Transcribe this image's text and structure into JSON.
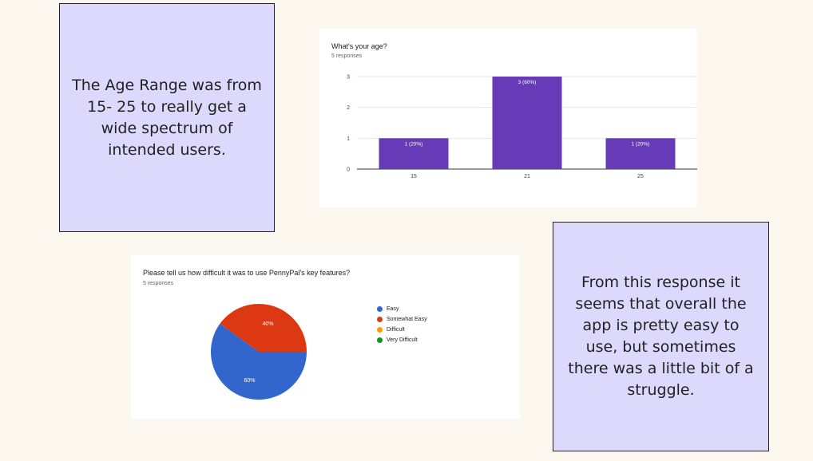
{
  "notes": {
    "age": "The Age Range was from 15- 25 to really get a wide spectrum of intended users.",
    "difficulty": "From this response it seems that overall the app is pretty easy to use, but sometimes there was a little bit of a struggle."
  },
  "chart_data": [
    {
      "type": "bar",
      "title": "What's your age?",
      "subtitle": "5 responses",
      "categories": [
        "15",
        "21",
        "25"
      ],
      "values": [
        1,
        3,
        1
      ],
      "data_labels": [
        "1 (20%)",
        "3 (60%)",
        "1 (20%)"
      ],
      "y_ticks": [
        0,
        1,
        2,
        3
      ],
      "ylim": [
        0,
        3
      ],
      "grid": true,
      "colors": [
        "#673ab7"
      ]
    },
    {
      "type": "pie",
      "title": "Please tell us how difficult it was to use PennyPal's key features?",
      "subtitle": "5 responses",
      "labels": [
        "Easy",
        "Somewhat Easy",
        "Difficult",
        "Very Difficult"
      ],
      "values": [
        60,
        40,
        0,
        0
      ],
      "slice_labels": [
        "60%",
        "40%",
        "",
        ""
      ],
      "colors": [
        "#3366cc",
        "#dc3912",
        "#ff9900",
        "#109618"
      ],
      "legend": "right"
    }
  ]
}
